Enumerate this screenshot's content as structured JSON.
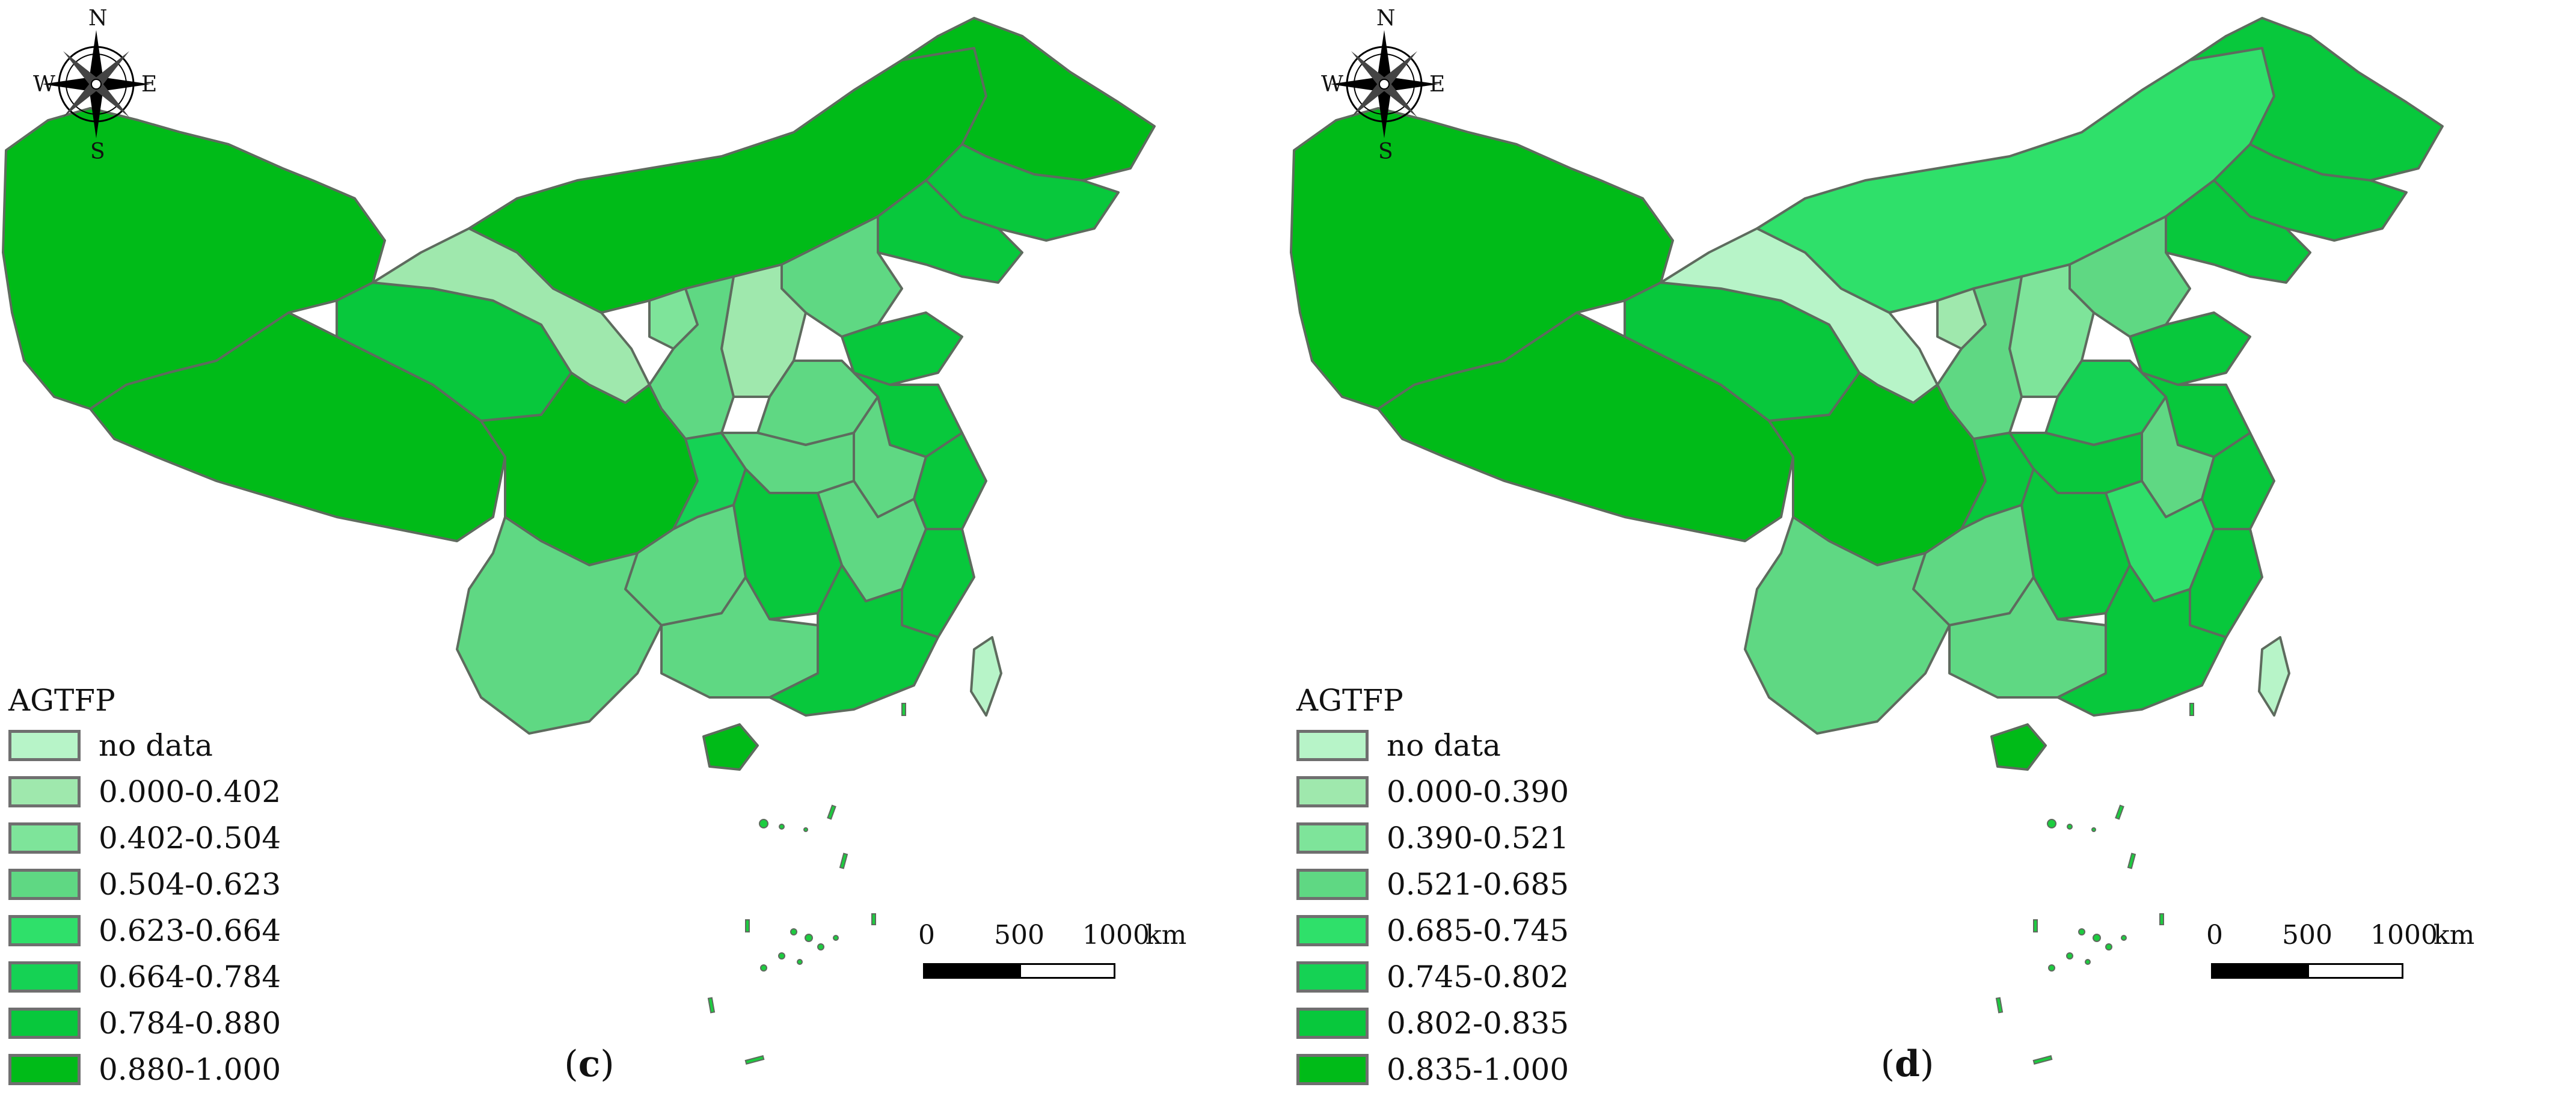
{
  "panels": [
    {
      "caption_letter": "c",
      "legend": {
        "title": "AGTFP",
        "items": [
          {
            "label": "no data",
            "color": "#b7f4c8"
          },
          {
            "label": "0.000-0.402",
            "color": "#9fe8ad"
          },
          {
            "label": "0.402-0.504",
            "color": "#7ee49a"
          },
          {
            "label": "0.504-0.623",
            "color": "#5fd883"
          },
          {
            "label": "0.623-0.664",
            "color": "#2fe06a"
          },
          {
            "label": "0.664-0.784",
            "color": "#15d254"
          },
          {
            "label": "0.784-0.880",
            "color": "#08c83c"
          },
          {
            "label": "0.880-1.000",
            "color": "#00bb18"
          }
        ]
      },
      "scale": {
        "labels": [
          "0",
          "500",
          "1000"
        ],
        "unit": "km"
      },
      "compass": {
        "n": "N",
        "s": "S",
        "e": "E",
        "w": "W"
      }
    },
    {
      "caption_letter": "d",
      "legend": {
        "title": "AGTFP",
        "items": [
          {
            "label": "no data",
            "color": "#b7f4c8"
          },
          {
            "label": "0.000-0.390",
            "color": "#9fe8ad"
          },
          {
            "label": "0.390-0.521",
            "color": "#7ee49a"
          },
          {
            "label": "0.521-0.685",
            "color": "#5fd883"
          },
          {
            "label": "0.685-0.745",
            "color": "#2fe06a"
          },
          {
            "label": "0.745-0.802",
            "color": "#15d254"
          },
          {
            "label": "0.802-0.835",
            "color": "#08c83c"
          },
          {
            "label": "0.835-1.000",
            "color": "#00bb18"
          }
        ]
      },
      "scale": {
        "labels": [
          "0",
          "500",
          "1000"
        ],
        "unit": "km"
      },
      "compass": {
        "n": "N",
        "s": "S",
        "e": "E",
        "w": "W"
      }
    }
  ],
  "caption_parens": {
    "open": "(",
    "close": ")"
  }
}
